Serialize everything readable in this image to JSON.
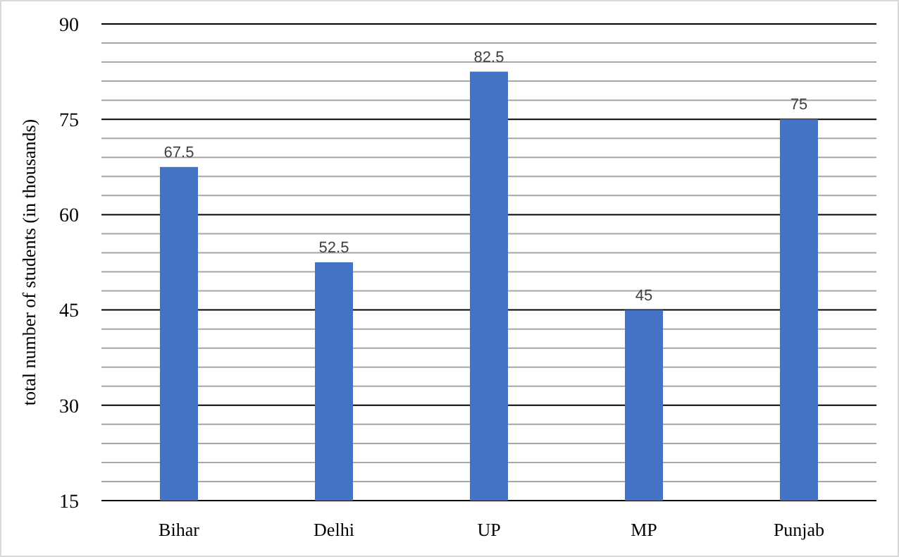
{
  "chart_data": {
    "type": "bar",
    "ylabel": "total number of students (in thousands)",
    "categories": [
      "Bihar",
      "Delhi",
      "UP",
      "MP",
      "Punjab"
    ],
    "values": [
      67.5,
      52.5,
      82.5,
      45,
      75
    ],
    "color": "#4472c4",
    "data_labels": true,
    "grid": "y",
    "ylim": [
      15,
      90
    ],
    "yticks": [
      15,
      {
        "value": 18,
        "label": null
      },
      {
        "value": 21,
        "label": null
      },
      {
        "value": 24,
        "label": null
      },
      {
        "value": 27,
        "label": null
      },
      30,
      {
        "value": 33,
        "label": null
      },
      {
        "value": 36,
        "label": null
      },
      {
        "value": 39,
        "label": null
      },
      {
        "value": 42,
        "label": null
      },
      45,
      {
        "value": 48,
        "label": null
      },
      {
        "value": 51,
        "label": null
      },
      {
        "value": 54,
        "label": null
      },
      {
        "value": 57,
        "label": null
      },
      60,
      {
        "value": 63,
        "label": null
      },
      {
        "value": 66,
        "label": null
      },
      {
        "value": 69,
        "label": null
      },
      {
        "value": 72,
        "label": null
      },
      75,
      {
        "value": 78,
        "label": null
      },
      {
        "value": 81,
        "label": null
      },
      {
        "value": 84,
        "label": null
      },
      {
        "value": 87,
        "label": null
      },
      90
    ]
  }
}
